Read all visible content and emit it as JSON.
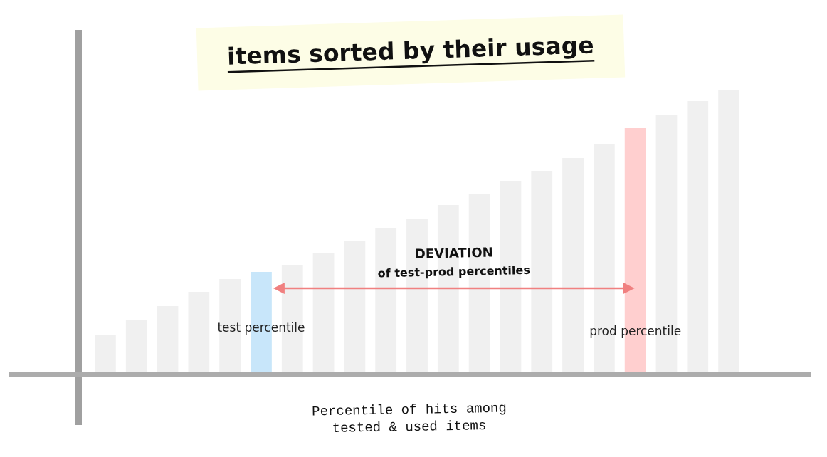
{
  "chart_data": {
    "type": "bar",
    "title": "items sorted by their usage",
    "x_label": [
      "Percentile of hits among",
      "tested & used items"
    ],
    "categories": [
      null,
      null,
      null,
      null,
      null,
      null,
      null,
      null,
      null,
      null,
      null,
      null,
      null,
      null,
      null,
      null,
      null,
      null,
      null,
      null,
      null
    ],
    "values": [
      52,
      72,
      92,
      112,
      130,
      140,
      150,
      166,
      184,
      202,
      214,
      234,
      250,
      268,
      282,
      300,
      320,
      342,
      360,
      380,
      396
    ],
    "colors": [
      "#f0f0f0",
      "#f0f0f0",
      "#f0f0f0",
      "#f0f0f0",
      "#f0f0f0",
      "#c8e6fa",
      "#f0f0f0",
      "#f0f0f0",
      "#f0f0f0",
      "#f0f0f0",
      "#f0f0f0",
      "#f0f0f0",
      "#f0f0f0",
      "#f0f0f0",
      "#f0f0f0",
      "#f0f0f0",
      "#f0f0f0",
      "#ffcfcf",
      "#f0f0f0",
      "#f0f0f0",
      "#f0f0f0"
    ],
    "ylim": [
      0,
      480
    ],
    "grid": false,
    "tick_labels": false,
    "annotations": [
      {
        "text": "test percentile",
        "x": 5
      },
      {
        "text": "prod percentile",
        "x": 17
      },
      {
        "text": [
          "DEVIATION",
          "of test-prod percentiles"
        ],
        "from": 5,
        "to": 17
      }
    ]
  }
}
